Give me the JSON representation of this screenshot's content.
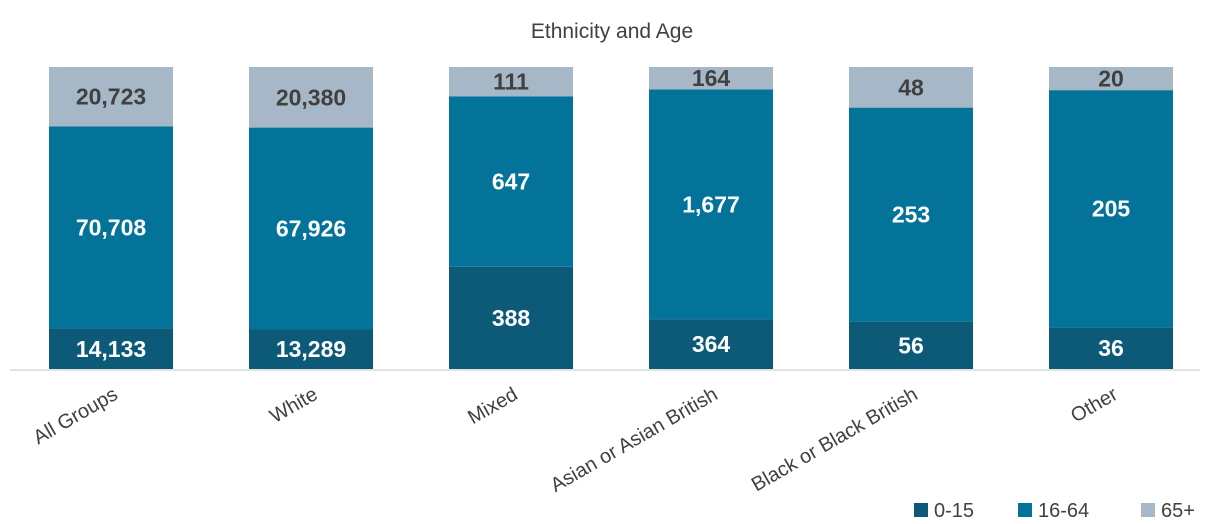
{
  "chart_data": {
    "type": "bar",
    "stacked": true,
    "normalized": true,
    "title": "Ethnicity and Age",
    "categories": [
      "All Groups",
      "White",
      "Mixed",
      "Asian or Asian British",
      "Black or Black British",
      "Other"
    ],
    "series": [
      {
        "name": "0-15",
        "color": "#0d5a78",
        "label_color": "#ffffff",
        "values": [
          14133,
          13289,
          388,
          364,
          56,
          36
        ],
        "labels": [
          "14,133",
          "13,289",
          "388",
          "364",
          "56",
          "36"
        ]
      },
      {
        "name": "16-64",
        "color": "#03739a",
        "label_color": "#ffffff",
        "values": [
          70708,
          67926,
          647,
          1677,
          253,
          205
        ],
        "labels": [
          "70,708",
          "67,926",
          "647",
          "1,677",
          "253",
          "205"
        ]
      },
      {
        "name": "65+",
        "color": "#a6b8c7",
        "label_color": "#404040",
        "values": [
          20723,
          20380,
          111,
          164,
          48,
          20
        ],
        "labels": [
          "20,723",
          "20,380",
          "111",
          "164",
          "48",
          "20"
        ]
      }
    ],
    "legend_position": "bottom-right",
    "grid": false
  }
}
